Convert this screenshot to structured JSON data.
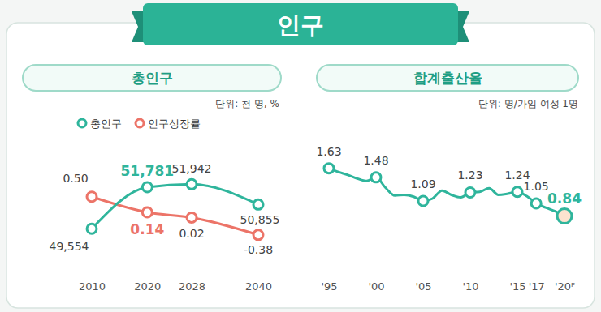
{
  "header": {
    "title": "인구"
  },
  "chart_data": [
    {
      "type": "line",
      "title": "총인구",
      "subtitle": "단위: 천 명, %",
      "x": [
        2010,
        2020,
        2028,
        2040
      ],
      "xlim": [
        2010,
        2040
      ],
      "xticks": [
        2010,
        2020,
        2028,
        2040
      ],
      "ylim": [
        48000,
        53000
      ],
      "y2lim": [
        -1,
        1
      ],
      "tick_labels": "x",
      "grid": false,
      "legend": "upper left",
      "data_labels": true,
      "series": [
        {
          "name": "총인구",
          "color": "#2fb59c",
          "marker": "circle",
          "values": [
            49554,
            51781,
            51942,
            50855
          ],
          "value_labels": [
            "49,554",
            "51,781",
            "51,942",
            "50,855"
          ]
        },
        {
          "name": "인구성장률",
          "color": "#ec7468",
          "marker": "circle",
          "axis": "y2",
          "values": [
            0.5,
            0.14,
            0.02,
            -0.38
          ],
          "value_labels": [
            "0.50",
            "0.14",
            "0.02",
            "-0.38"
          ]
        }
      ]
    },
    {
      "type": "line",
      "title": "합계출산율",
      "subtitle": "단위: 명/가임 여성 1명",
      "x": [
        1995,
        1996,
        1997,
        1998,
        1999,
        2000,
        2001,
        2002,
        2003,
        2004,
        2005,
        2006,
        2007,
        2008,
        2009,
        2010,
        2011,
        2012,
        2013,
        2014,
        2015,
        2016,
        2017,
        2018,
        2019,
        2020
      ],
      "xlim": [
        1995,
        2020
      ],
      "xticks": [
        {
          "value": 1995,
          "label": "'95"
        },
        {
          "value": 2000,
          "label": "'00"
        },
        {
          "value": 2005,
          "label": "'05"
        },
        {
          "value": 2010,
          "label": "'10"
        },
        {
          "value": 2015,
          "label": "'15"
        },
        {
          "value": 2017,
          "label": "'17"
        },
        {
          "value": 2020,
          "label": "'20ᴾ"
        }
      ],
      "ylim": [
        0.5,
        2.0
      ],
      "tick_labels": "x",
      "grid": false,
      "data_labels": true,
      "series": [
        {
          "color": "#2fb59c",
          "marker": "circle",
          "values": [
            1.63,
            1.57,
            1.52,
            1.46,
            1.42,
            1.48,
            1.31,
            1.18,
            1.19,
            1.16,
            1.09,
            1.13,
            1.26,
            1.19,
            1.15,
            1.23,
            1.24,
            1.3,
            1.19,
            1.21,
            1.24,
            1.17,
            1.05,
            0.98,
            0.92,
            0.84
          ],
          "value_labels": [
            "1.63",
            null,
            null,
            null,
            null,
            "1.48",
            null,
            null,
            null,
            null,
            "1.09",
            null,
            null,
            null,
            null,
            "1.23",
            null,
            null,
            null,
            null,
            "1.24",
            null,
            "1.05",
            null,
            null,
            "0.84"
          ]
        }
      ]
    }
  ]
}
